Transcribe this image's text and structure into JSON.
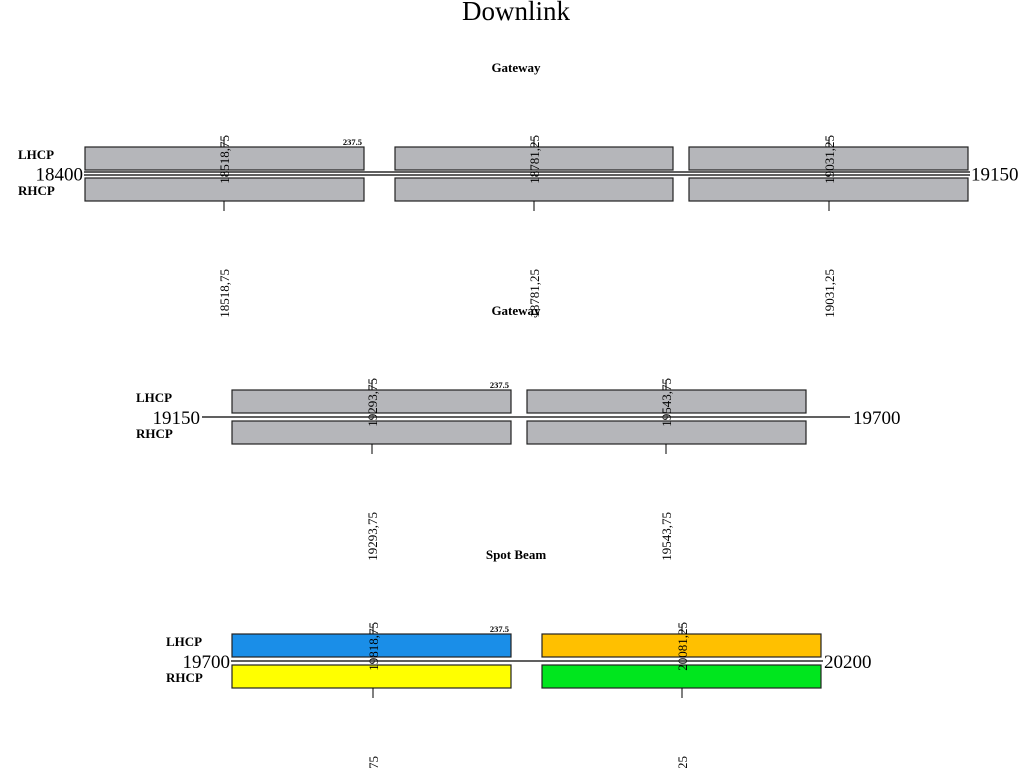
{
  "title": "Downlink",
  "bandwidth_label": "237.5",
  "polarization_labels": {
    "top": "LHCP",
    "bottom": "RHCP"
  },
  "sections": [
    {
      "title": "Gateway",
      "start": "18400",
      "end": "19150",
      "channels": [
        {
          "center": "18518,75",
          "lhcp_color": "#b5b6ba",
          "rhcp_color": "#b5b6ba"
        },
        {
          "center": "18781,25",
          "lhcp_color": "#b5b6ba",
          "rhcp_color": "#b5b6ba"
        },
        {
          "center": "19031,25",
          "lhcp_color": "#b5b6ba",
          "rhcp_color": "#b5b6ba"
        }
      ]
    },
    {
      "title": "Gateway",
      "start": "19150",
      "end": "19700",
      "channels": [
        {
          "center": "19293,75",
          "lhcp_color": "#b5b6ba",
          "rhcp_color": "#b5b6ba"
        },
        {
          "center": "19543,75",
          "lhcp_color": "#b5b6ba",
          "rhcp_color": "#b5b6ba"
        }
      ]
    },
    {
      "title": "Spot Beam",
      "start": "19700",
      "end": "20200",
      "channels": [
        {
          "center": "19818,75",
          "lhcp_color": "#1a8ee8",
          "rhcp_color": "#ffff00"
        },
        {
          "center": "20081,25",
          "lhcp_color": "#ffc000",
          "rhcp_color": "#00e61e"
        }
      ]
    }
  ]
}
